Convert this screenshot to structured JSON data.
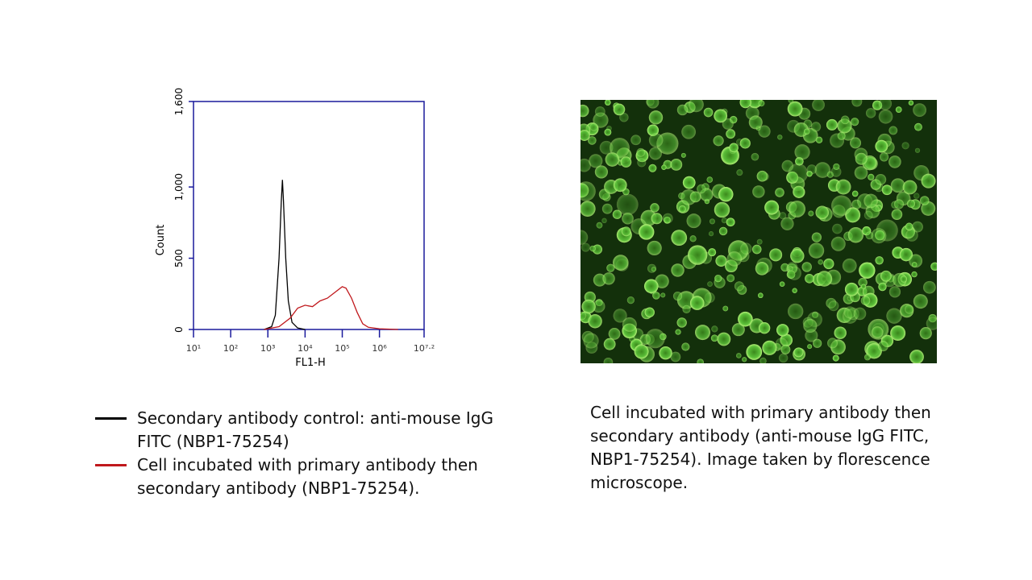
{
  "chart_data": {
    "type": "line",
    "x_label": "FL1-H",
    "y_label": "Count",
    "log_x": true,
    "xlim": [
      10,
      15848932
    ],
    "xticks": [
      {
        "value": 10,
        "label": "10¹"
      },
      {
        "value": 100,
        "label": "10²"
      },
      {
        "value": 1000,
        "label": "10³"
      },
      {
        "value": 10000,
        "label": "10⁴"
      },
      {
        "value": 100000,
        "label": "10⁵"
      },
      {
        "value": 1000000,
        "label": "10⁶"
      },
      {
        "value": 15848932,
        "label": "10⁷·²"
      }
    ],
    "ylim": [
      0,
      1600
    ],
    "yticks": [
      0,
      500,
      {
        "value": 1000,
        "label": "1,000"
      },
      {
        "value": 1600,
        "label": "1,600"
      }
    ],
    "axis_color": "#1a1a9c",
    "series": [
      {
        "name": "Secondary antibody control: anti-mouse IgG FITC (NBP1-75254)",
        "color": "#000000",
        "x": [
          794,
          1259,
          1585,
          1995,
          2291,
          2455,
          2630,
          3020,
          3548,
          4467,
          6310,
          10000
        ],
        "values": [
          0,
          20,
          100,
          500,
          900,
          1050,
          900,
          500,
          200,
          50,
          10,
          0
        ]
      },
      {
        "name": "Cell incubated with primary antibody then secondary antibody (NBP1-75254).",
        "color": "#c0181c",
        "x": [
          794,
          1995,
          3981,
          6310,
          10000,
          15849,
          25119,
          39811,
          63096,
          100000,
          125893,
          177828,
          251189,
          354813,
          501187,
          1000000,
          3162278
        ],
        "values": [
          0,
          20,
          80,
          150,
          170,
          160,
          200,
          220,
          260,
          300,
          290,
          220,
          120,
          40,
          15,
          5,
          0
        ]
      }
    ]
  },
  "image": {
    "caption": "Cell incubated with primary antibody then secondary antibody (anti-mouse IgG FITC, NBP1-75254).  Image taken by florescence microscope."
  }
}
